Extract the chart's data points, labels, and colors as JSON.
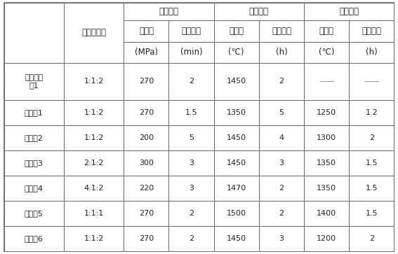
{
  "col0_header": "",
  "col1_header": "原料摩尔比",
  "group_headers": [
    "增密处理",
    "通氧烧结",
    "真空处理"
  ],
  "sub_headers": [
    "最高压",
    "保压时间",
    "最高温",
    "保温时间",
    "最高温",
    "保温时间"
  ],
  "units": [
    "(MPa)",
    "(min)",
    "(℃)",
    "(h)",
    "(℃)",
    "(h)"
  ],
  "rows": [
    [
      "对比实施\n例1",
      "1:1:2",
      "270",
      "2",
      "1450",
      "2",
      "——",
      "——"
    ],
    [
      "实施例1",
      "1:1:2",
      "270",
      "1.5",
      "1350",
      "5",
      "1250",
      "1.2"
    ],
    [
      "实施例2",
      "1:1:2",
      "200",
      "5",
      "1450",
      "4",
      "1300",
      "2"
    ],
    [
      "实施例3",
      "2:1:2",
      "300",
      "3",
      "1450",
      "3",
      "1350",
      "1.5"
    ],
    [
      "实施例4",
      "4:1:2",
      "220",
      "3",
      "1470",
      "2",
      "1350",
      "1.5"
    ],
    [
      "实施例5",
      "1:1:1",
      "270",
      "2",
      "1500",
      "2",
      "1400",
      "1.5"
    ],
    [
      "实施例6",
      "1:1:2",
      "270",
      "2",
      "1450",
      "3",
      "1200",
      "2"
    ]
  ],
  "border_color": "#666666",
  "text_color": "#222222",
  "dash_color": "#888888",
  "font_size": 8.0,
  "header_font_size": 8.5,
  "fig_width": 5.67,
  "fig_height": 3.63,
  "dpi": 100
}
